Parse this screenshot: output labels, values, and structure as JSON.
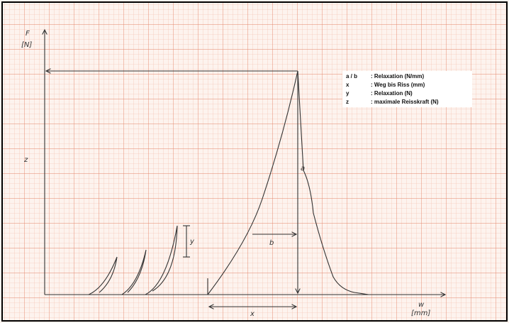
{
  "axes": {
    "y_label": {
      "symbol": "F",
      "unit": "[N]"
    },
    "x_label": {
      "symbol": "w",
      "unit": "[mm]"
    }
  },
  "annotations": {
    "z": "z",
    "y": "y",
    "a": "a",
    "b": "b",
    "x": "x"
  },
  "legend": [
    {
      "key": "a / b",
      "text": ": Relaxation (N/mm)"
    },
    {
      "key": "x",
      "text": ": Weg bis Riss (mm)"
    },
    {
      "key": "y",
      "text": ": Relaxation (N)"
    },
    {
      "key": "z",
      "text": ": maximale Reisskraft (N)"
    }
  ]
}
